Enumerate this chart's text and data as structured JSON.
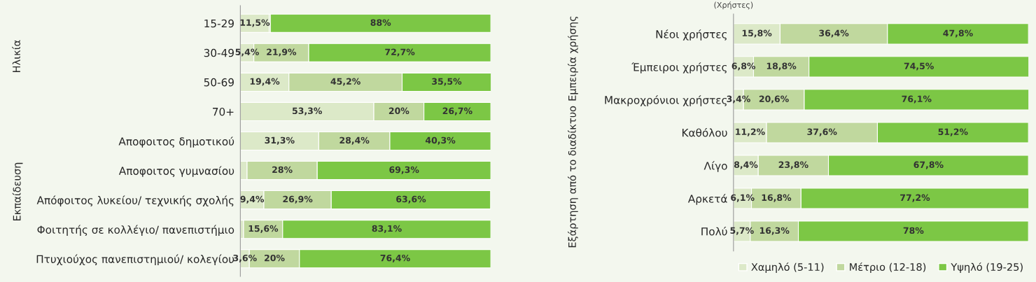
{
  "chart_data": [
    {
      "type": "bar",
      "orientation": "horizontal",
      "stacked": true,
      "categories": [
        "15-29",
        "30-49",
        "50-69",
        "70+",
        "Αποφοιτος δημοτικού",
        "Αποφοιτος γυμνασίου",
        "Απόφοιτος λυκείου/ τεχνικής σχολής",
        "Φοιτητής σε κολλέγιο/ πανεπιστήμιο",
        "Πτυχιούχος πανεπιστημιού/ κολεγίου"
      ],
      "series": [
        {
          "color": "#dce9c8",
          "values": [
            11.5,
            5.4,
            19.4,
            53.3,
            31.3,
            2.7,
            9.4,
            1.3,
            3.6
          ],
          "value_labels": [
            "11,5%",
            "5,4%",
            "19,4%",
            "53,3%",
            "31,3%",
            null,
            "9,4%",
            null,
            "3,6%"
          ]
        },
        {
          "color": "#c0d89e",
          "values": [
            0.5,
            21.9,
            45.2,
            20,
            28.4,
            28,
            26.9,
            15.6,
            20
          ],
          "value_labels": [
            null,
            "21,9%",
            "45,2%",
            "20%",
            "28,4%",
            "28%",
            "26,9%",
            "15,6%",
            "20%"
          ]
        },
        {
          "color": "#7cc745",
          "values": [
            88,
            72.7,
            35.5,
            26.7,
            40.3,
            69.3,
            63.6,
            83.1,
            76.4
          ],
          "value_labels": [
            "88%",
            "72,7%",
            "35,5%",
            "26,7%",
            "40,3%",
            "69,3%",
            "63,6%",
            "83,1%",
            "76,4%"
          ]
        }
      ],
      "annotations": [
        "Ηλικία",
        "Εκπαίδευση"
      ]
    },
    {
      "type": "bar",
      "orientation": "horizontal",
      "stacked": true,
      "legend": "bottom",
      "ylabel": "(Χρήστες)",
      "categories": [
        "Νέοι χρήστες",
        "Έμπειροι χρήστες",
        "Μακροχρόνιοι χρήστες",
        "Καθόλου",
        "Λίγο",
        "Αρκετά",
        "Πολύ"
      ],
      "series": [
        {
          "name": "Χαμηλό (5-11)",
          "color": "#dce9c8",
          "values": [
            15.8,
            6.8,
            3.4,
            11.2,
            8.4,
            6.1,
            5.7
          ],
          "value_labels": [
            "15,8%",
            "6,8%",
            "3,4%",
            "11,2%",
            "8,4%",
            "6,1%",
            "5,7%"
          ]
        },
        {
          "name": "Μέτριο (12-18)",
          "color": "#c0d89e",
          "values": [
            36.4,
            18.8,
            20.6,
            37.6,
            23.8,
            16.8,
            16.3
          ],
          "value_labels": [
            "36,4%",
            "18,8%",
            "20,6%",
            "37,6%",
            "23,8%",
            "16,8%",
            "16,3%"
          ]
        },
        {
          "name": "Υψηλό (19-25)",
          "color": "#7cc745",
          "values": [
            47.8,
            74.5,
            76.1,
            51.2,
            67.8,
            77.2,
            78
          ],
          "value_labels": [
            "47,8%",
            "74,5%",
            "76,1%",
            "51,2%",
            "67,8%",
            "77,2%",
            "78%"
          ]
        }
      ],
      "annotations": [
        "Εμπειρία χρήσης",
        "Εξάρτηση από το διαδίκτυο"
      ]
    }
  ]
}
